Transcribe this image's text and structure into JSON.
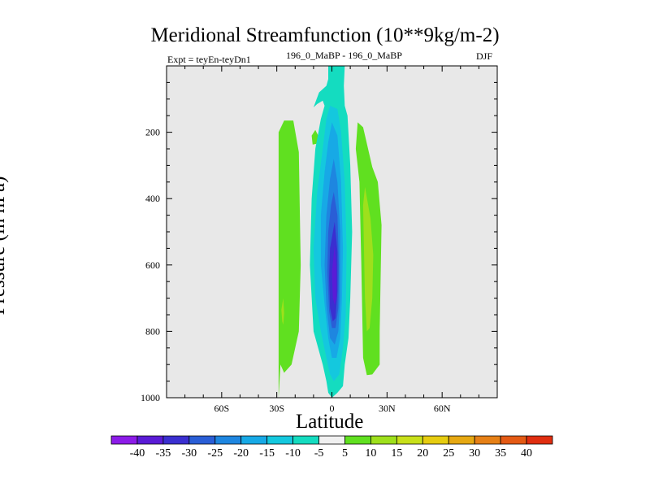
{
  "chart_data": {
    "type": "filled-contour",
    "title": "Meridional Streamfunction (10**9kg/m-2)",
    "subtitle_left": "Expt = teyEn-teyDn1",
    "subtitle_mid": "196_0_MaBP - 196_0_MaBP",
    "season": "DJF",
    "xlabel": "Latitude",
    "ylabel": "Pressure (in hPa)",
    "xlim": [
      -90,
      90
    ],
    "ylim": [
      1000,
      0
    ],
    "x_ticks": [
      {
        "value": -60,
        "label": "60S"
      },
      {
        "value": -30,
        "label": "30S"
      },
      {
        "value": 0,
        "label": "0"
      },
      {
        "value": 30,
        "label": "30N"
      },
      {
        "value": 60,
        "label": "60N"
      }
    ],
    "y_ticks": [
      {
        "value": 200,
        "label": "200"
      },
      {
        "value": 400,
        "label": "400"
      },
      {
        "value": 600,
        "label": "600"
      },
      {
        "value": 800,
        "label": "800"
      },
      {
        "value": 1000,
        "label": "1000"
      }
    ],
    "colorbar": {
      "levels": [
        "-40",
        "-35",
        "-30",
        "-25",
        "-20",
        "-15",
        "-10",
        "-5",
        "5",
        "10",
        "15",
        "20",
        "25",
        "30",
        "35",
        "40"
      ],
      "colors": [
        "#8c1be8",
        "#5a1bd6",
        "#3a2fd0",
        "#2a5ed6",
        "#1e86e0",
        "#17a9e6",
        "#14c8de",
        "#14dcc0",
        "#f0f0f0",
        "#60e020",
        "#9ee01c",
        "#c8e01a",
        "#e6cc10",
        "#e6a812",
        "#e68016",
        "#e45a14",
        "#e02e10"
      ]
    },
    "regions": [
      {
        "name": "sh-positive-cell",
        "level": "5 to 10",
        "color": "#60e020",
        "points": [
          [
            -29,
            1000
          ],
          [
            -29,
            200
          ],
          [
            -26,
            165
          ],
          [
            -21,
            165
          ],
          [
            -18,
            260
          ],
          [
            -17,
            600
          ],
          [
            -18,
            800
          ],
          [
            -22,
            900
          ],
          [
            -26,
            925
          ],
          [
            -28,
            900
          ]
        ]
      },
      {
        "name": "sh-positive-core",
        "level": "10 to 15",
        "color": "#9ee01c",
        "points": [
          [
            -27,
            770
          ],
          [
            -27.5,
            735
          ],
          [
            -26.5,
            700
          ],
          [
            -26,
            745
          ],
          [
            -26.5,
            780
          ]
        ]
      },
      {
        "name": "tropical-blob",
        "level": "5 to 10",
        "color": "#60e020",
        "points": [
          [
            -10.5,
            237
          ],
          [
            -11,
            210
          ],
          [
            -9,
            193
          ],
          [
            -7,
            215
          ],
          [
            -8.5,
            235
          ]
        ]
      },
      {
        "name": "nh-positive-cell",
        "level": "5 to 10",
        "color": "#60e020",
        "points": [
          [
            13,
            250
          ],
          [
            14,
            170
          ],
          [
            17,
            185
          ],
          [
            22,
            305
          ],
          [
            25,
            350
          ],
          [
            27,
            480
          ],
          [
            26,
            800
          ],
          [
            26,
            900
          ],
          [
            22,
            930
          ],
          [
            19,
            932
          ],
          [
            17,
            880
          ],
          [
            16,
            600
          ],
          [
            15,
            350
          ]
        ]
      },
      {
        "name": "nh-positive-core",
        "level": "10 to 15",
        "color": "#9ee01c",
        "points": [
          [
            17,
            420
          ],
          [
            18,
            365
          ],
          [
            21,
            460
          ],
          [
            22.5,
            570
          ],
          [
            22,
            700
          ],
          [
            20.5,
            790
          ],
          [
            19,
            800
          ],
          [
            18,
            700
          ]
        ]
      },
      {
        "name": "central-cell-lightblue",
        "level": "-5 to -10",
        "color": "#14dcc0",
        "points": [
          [
            -2,
            0
          ],
          [
            7,
            0
          ],
          [
            6.5,
            60
          ],
          [
            7,
            120
          ],
          [
            8.5,
            150
          ],
          [
            10,
            300
          ],
          [
            11,
            500
          ],
          [
            10,
            700
          ],
          [
            9,
            820
          ],
          [
            7,
            900
          ],
          [
            6,
            965
          ],
          [
            3,
            985
          ],
          [
            0,
            1000
          ],
          [
            -2,
            985
          ],
          [
            -3,
            950
          ],
          [
            -5,
            900
          ],
          [
            -10,
            800
          ],
          [
            -12,
            600
          ],
          [
            -11,
            400
          ],
          [
            -9,
            250
          ],
          [
            -6,
            160
          ],
          [
            -4,
            120
          ],
          [
            -5,
            105
          ],
          [
            -8,
            115
          ],
          [
            -10,
            125
          ],
          [
            -7,
            80
          ],
          [
            -3,
            60
          ],
          [
            -2,
            40
          ]
        ]
      },
      {
        "name": "central-cell-cyan",
        "level": "-10 to -15",
        "color": "#14c8de",
        "points": [
          [
            -1,
            120
          ],
          [
            3,
            130
          ],
          [
            5,
            200
          ],
          [
            7,
            350
          ],
          [
            8,
            550
          ],
          [
            7.5,
            750
          ],
          [
            6,
            850
          ],
          [
            4,
            930
          ],
          [
            1,
            950
          ],
          [
            -1,
            930
          ],
          [
            -3,
            880
          ],
          [
            -6,
            800
          ],
          [
            -9,
            700
          ],
          [
            -10,
            550
          ],
          [
            -8,
            380
          ],
          [
            -5,
            250
          ],
          [
            -3,
            160
          ]
        ]
      },
      {
        "name": "central-cell-skyblue",
        "level": "-15 to -20",
        "color": "#17a9e6",
        "points": [
          [
            0,
            170
          ],
          [
            3,
            210
          ],
          [
            5,
            350
          ],
          [
            6,
            550
          ],
          [
            5.5,
            700
          ],
          [
            4.5,
            820
          ],
          [
            2.5,
            880
          ],
          [
            0,
            880
          ],
          [
            -2,
            820
          ],
          [
            -4,
            720
          ],
          [
            -6,
            600
          ],
          [
            -6,
            450
          ],
          [
            -4,
            320
          ],
          [
            -2,
            230
          ]
        ]
      },
      {
        "name": "central-cell-blue",
        "level": "-20 to -25",
        "color": "#1e86e0",
        "points": [
          [
            1,
            280
          ],
          [
            3,
            350
          ],
          [
            4.5,
            500
          ],
          [
            4.5,
            700
          ],
          [
            3.5,
            800
          ],
          [
            1.5,
            840
          ],
          [
            -1,
            820
          ],
          [
            -3,
            720
          ],
          [
            -4,
            600
          ],
          [
            -3,
            450
          ],
          [
            -1,
            340
          ]
        ]
      },
      {
        "name": "central-cell-mid",
        "level": "-25 to -30",
        "color": "#2a5ed6",
        "points": [
          [
            1,
            380
          ],
          [
            3,
            450
          ],
          [
            3.8,
            600
          ],
          [
            3.5,
            730
          ],
          [
            2,
            790
          ],
          [
            0,
            790
          ],
          [
            -1.5,
            740
          ],
          [
            -2.5,
            620
          ],
          [
            -2,
            500
          ],
          [
            -0.5,
            420
          ]
        ]
      },
      {
        "name": "central-cell-deep",
        "level": "-30 to -35",
        "color": "#3a2fd0",
        "points": [
          [
            1.5,
            470
          ],
          [
            3,
            560
          ],
          [
            3,
            680
          ],
          [
            2,
            760
          ],
          [
            0.5,
            770
          ],
          [
            -1,
            730
          ],
          [
            -1.5,
            640
          ],
          [
            -1,
            550
          ]
        ]
      },
      {
        "name": "central-cell-core",
        "level": "-35 to -40",
        "color": "#5a1bd6",
        "points": [
          [
            1.5,
            540
          ],
          [
            2.5,
            610
          ],
          [
            2.5,
            700
          ],
          [
            1.5,
            720
          ],
          [
            0.5,
            700
          ],
          [
            0,
            620
          ]
        ]
      }
    ]
  }
}
